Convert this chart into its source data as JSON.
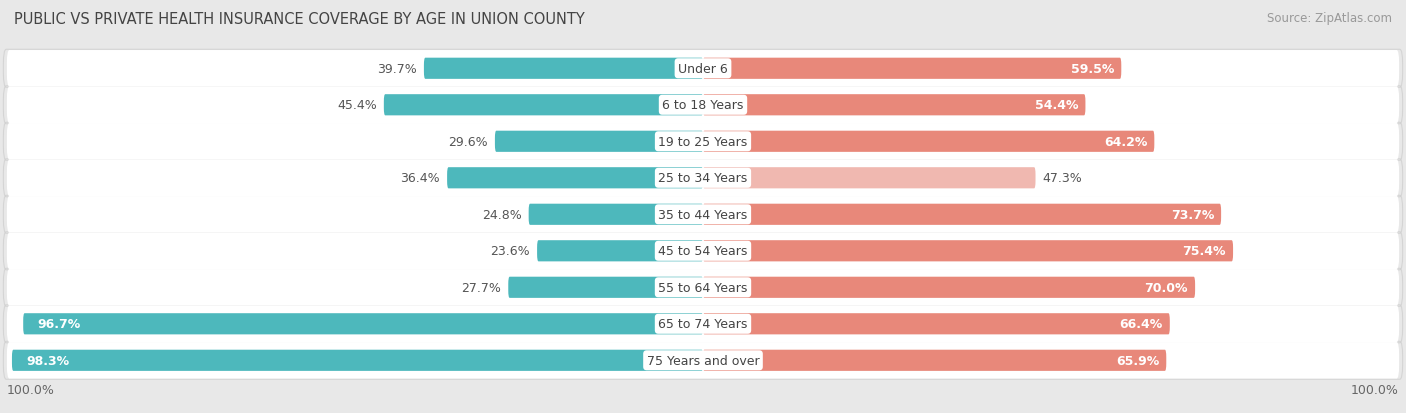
{
  "title": "PUBLIC VS PRIVATE HEALTH INSURANCE COVERAGE BY AGE IN UNION COUNTY",
  "source": "Source: ZipAtlas.com",
  "categories": [
    "Under 6",
    "6 to 18 Years",
    "19 to 25 Years",
    "25 to 34 Years",
    "35 to 44 Years",
    "45 to 54 Years",
    "55 to 64 Years",
    "65 to 74 Years",
    "75 Years and over"
  ],
  "public_values": [
    39.7,
    45.4,
    29.6,
    36.4,
    24.8,
    23.6,
    27.7,
    96.7,
    98.3
  ],
  "private_values": [
    59.5,
    54.4,
    64.2,
    47.3,
    73.7,
    75.4,
    70.0,
    66.4,
    65.9
  ],
  "public_color": "#4db8bc",
  "private_color": "#e8887a",
  "private_color_light": "#f0b8b0",
  "bg_color": "#e8e8e8",
  "row_light": "#f5f5f5",
  "row_dark": "#e8e8e8",
  "bar_height": 0.58,
  "label_fontsize": 9.0,
  "title_fontsize": 10.5,
  "legend_fontsize": 9.0,
  "source_fontsize": 8.5,
  "max_val": 100.0
}
